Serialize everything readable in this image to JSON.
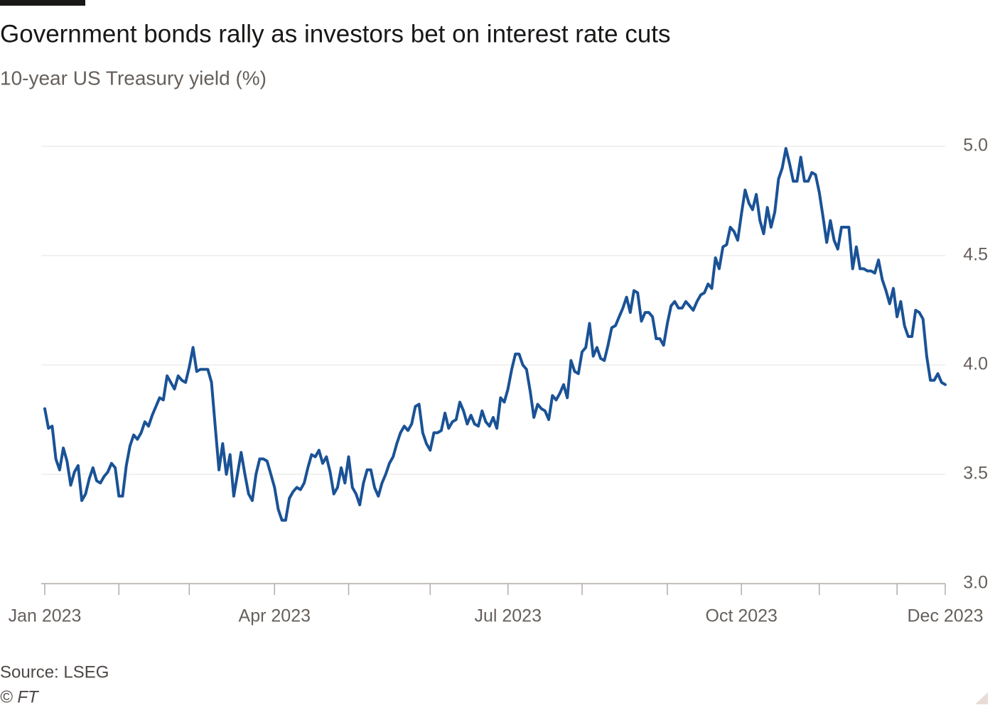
{
  "chart_data": {
    "type": "line",
    "title": "Government bonds rally as investors bet on interest rate cuts",
    "subtitle": "10-year US Treasury yield (%)",
    "source": "Source: LSEG",
    "credit": "© FT",
    "color": "#1a5296",
    "values": [
      3.8,
      3.71,
      3.72,
      3.57,
      3.52,
      3.62,
      3.56,
      3.45,
      3.51,
      3.54,
      3.38,
      3.41,
      3.48,
      3.53,
      3.47,
      3.46,
      3.49,
      3.51,
      3.55,
      3.53,
      3.4,
      3.4,
      3.54,
      3.63,
      3.68,
      3.66,
      3.69,
      3.74,
      3.72,
      3.77,
      3.81,
      3.85,
      3.84,
      3.95,
      3.92,
      3.89,
      3.95,
      3.93,
      3.92,
      3.99,
      4.08,
      3.97,
      3.98,
      3.98,
      3.98,
      3.92,
      3.72,
      3.52,
      3.64,
      3.5,
      3.59,
      3.4,
      3.5,
      3.6,
      3.5,
      3.41,
      3.38,
      3.5,
      3.57,
      3.57,
      3.56,
      3.5,
      3.44,
      3.34,
      3.29,
      3.29,
      3.39,
      3.42,
      3.44,
      3.43,
      3.46,
      3.53,
      3.59,
      3.58,
      3.61,
      3.55,
      3.58,
      3.51,
      3.41,
      3.44,
      3.53,
      3.46,
      3.58,
      3.44,
      3.41,
      3.36,
      3.46,
      3.52,
      3.52,
      3.44,
      3.4,
      3.46,
      3.5,
      3.55,
      3.58,
      3.64,
      3.69,
      3.72,
      3.7,
      3.73,
      3.81,
      3.82,
      3.69,
      3.64,
      3.61,
      3.69,
      3.69,
      3.7,
      3.78,
      3.71,
      3.74,
      3.75,
      3.83,
      3.79,
      3.73,
      3.77,
      3.73,
      3.72,
      3.79,
      3.74,
      3.72,
      3.76,
      3.71,
      3.85,
      3.83,
      3.89,
      3.98,
      4.05,
      4.05,
      4.0,
      3.98,
      3.88,
      3.76,
      3.82,
      3.8,
      3.79,
      3.75,
      3.86,
      3.84,
      3.87,
      3.91,
      3.85,
      4.02,
      3.97,
      3.96,
      4.06,
      4.08,
      4.19,
      4.04,
      4.08,
      4.03,
      4.02,
      4.09,
      4.17,
      4.18,
      4.22,
      4.26,
      4.31,
      4.24,
      4.34,
      4.33,
      4.2,
      4.24,
      4.24,
      4.22,
      4.12,
      4.12,
      4.09,
      4.19,
      4.27,
      4.29,
      4.26,
      4.26,
      4.29,
      4.27,
      4.25,
      4.29,
      4.32,
      4.33,
      4.37,
      4.35,
      4.49,
      4.44,
      4.54,
      4.55,
      4.63,
      4.61,
      4.57,
      4.69,
      4.8,
      4.74,
      4.71,
      4.78,
      4.66,
      4.6,
      4.72,
      4.63,
      4.7,
      4.85,
      4.9,
      4.99,
      4.92,
      4.84,
      4.84,
      4.95,
      4.84,
      4.84,
      4.88,
      4.87,
      4.79,
      4.68,
      4.56,
      4.66,
      4.57,
      4.53,
      4.63,
      4.63,
      4.63,
      4.44,
      4.54,
      4.44,
      4.44,
      4.43,
      4.43,
      4.42,
      4.48,
      4.39,
      4.34,
      4.28,
      4.35,
      4.22,
      4.29,
      4.18,
      4.13,
      4.13,
      4.25,
      4.24,
      4.21,
      4.04,
      3.93,
      3.93,
      3.96,
      3.92,
      3.91
    ],
    "xlim": [
      0,
      243
    ],
    "xticks": [
      {
        "value": 0,
        "label": "Jan 2023"
      },
      20,
      39,
      {
        "value": 62,
        "label": "Apr 2023"
      },
      82,
      104,
      {
        "value": 125,
        "label": "Jul 2023"
      },
      145,
      168,
      {
        "value": 188,
        "label": "Oct 2023"
      },
      209,
      230,
      {
        "value": 243,
        "label": "Dec 2023"
      }
    ],
    "ylim": [
      3.0,
      5.0
    ],
    "yticks": [
      {
        "value": 3.0,
        "label": "3.0"
      },
      3.5,
      {
        "value": 4.0,
        "label": "4.0"
      },
      4.5,
      {
        "value": 5.0,
        "label": "5.0"
      }
    ],
    "grid": true
  }
}
